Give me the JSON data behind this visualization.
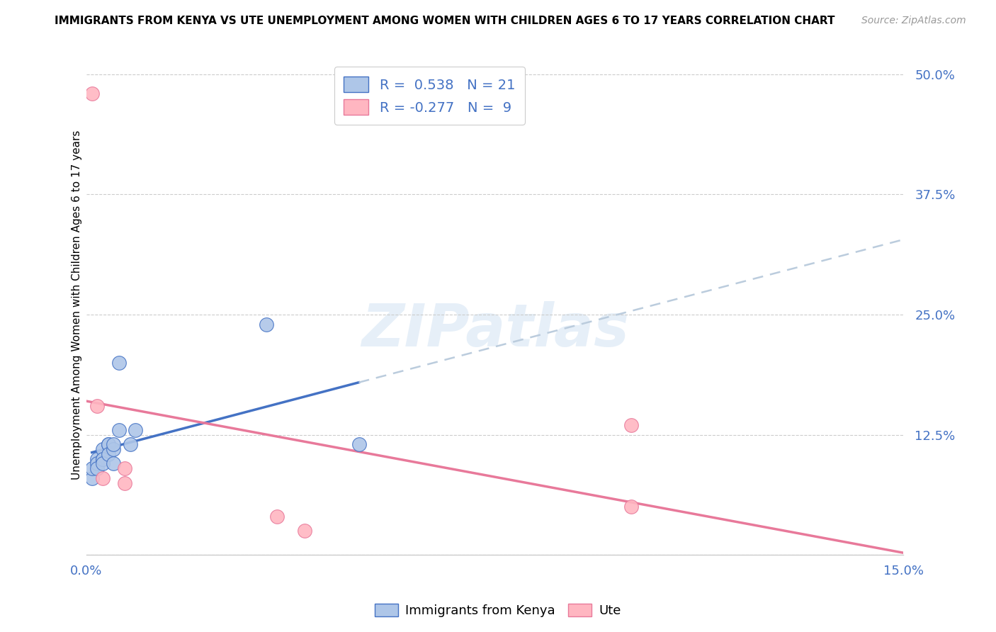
{
  "title": "IMMIGRANTS FROM KENYA VS UTE UNEMPLOYMENT AMONG WOMEN WITH CHILDREN AGES 6 TO 17 YEARS CORRELATION CHART",
  "source": "Source: ZipAtlas.com",
  "tick_color": "#4472C4",
  "ylabel": "Unemployment Among Women with Children Ages 6 to 17 years",
  "xlim": [
    0.0,
    0.15
  ],
  "ylim": [
    0.0,
    0.52
  ],
  "xticks": [
    0.0,
    0.025,
    0.05,
    0.075,
    0.1,
    0.125,
    0.15
  ],
  "yticks": [
    0.0,
    0.125,
    0.25,
    0.375,
    0.5
  ],
  "ytick_labels": [
    "",
    "12.5%",
    "25.0%",
    "37.5%",
    "50.0%"
  ],
  "kenya_R": 0.538,
  "kenya_N": 21,
  "ute_R": -0.277,
  "ute_N": 9,
  "kenya_color": "#AEC6E8",
  "kenya_line_color": "#4472C4",
  "kenya_dash_color": "#BBCCDD",
  "ute_color": "#FFB6C1",
  "ute_line_color": "#E8799A",
  "kenya_points_x": [
    0.001,
    0.001,
    0.002,
    0.002,
    0.002,
    0.003,
    0.003,
    0.003,
    0.003,
    0.004,
    0.004,
    0.004,
    0.005,
    0.005,
    0.005,
    0.006,
    0.006,
    0.008,
    0.009,
    0.033,
    0.05
  ],
  "kenya_points_y": [
    0.08,
    0.09,
    0.1,
    0.095,
    0.09,
    0.1,
    0.11,
    0.1,
    0.095,
    0.115,
    0.115,
    0.105,
    0.11,
    0.115,
    0.095,
    0.13,
    0.2,
    0.115,
    0.13,
    0.24,
    0.115
  ],
  "ute_points_x": [
    0.001,
    0.002,
    0.003,
    0.007,
    0.007,
    0.035,
    0.04,
    0.1,
    0.1
  ],
  "ute_points_y": [
    0.48,
    0.155,
    0.08,
    0.075,
    0.09,
    0.04,
    0.025,
    0.135,
    0.05
  ],
  "watermark": "ZIPatlas",
  "background_color": "#FFFFFF",
  "legend_blue_label": "Immigrants from Kenya",
  "legend_pink_label": "Ute"
}
